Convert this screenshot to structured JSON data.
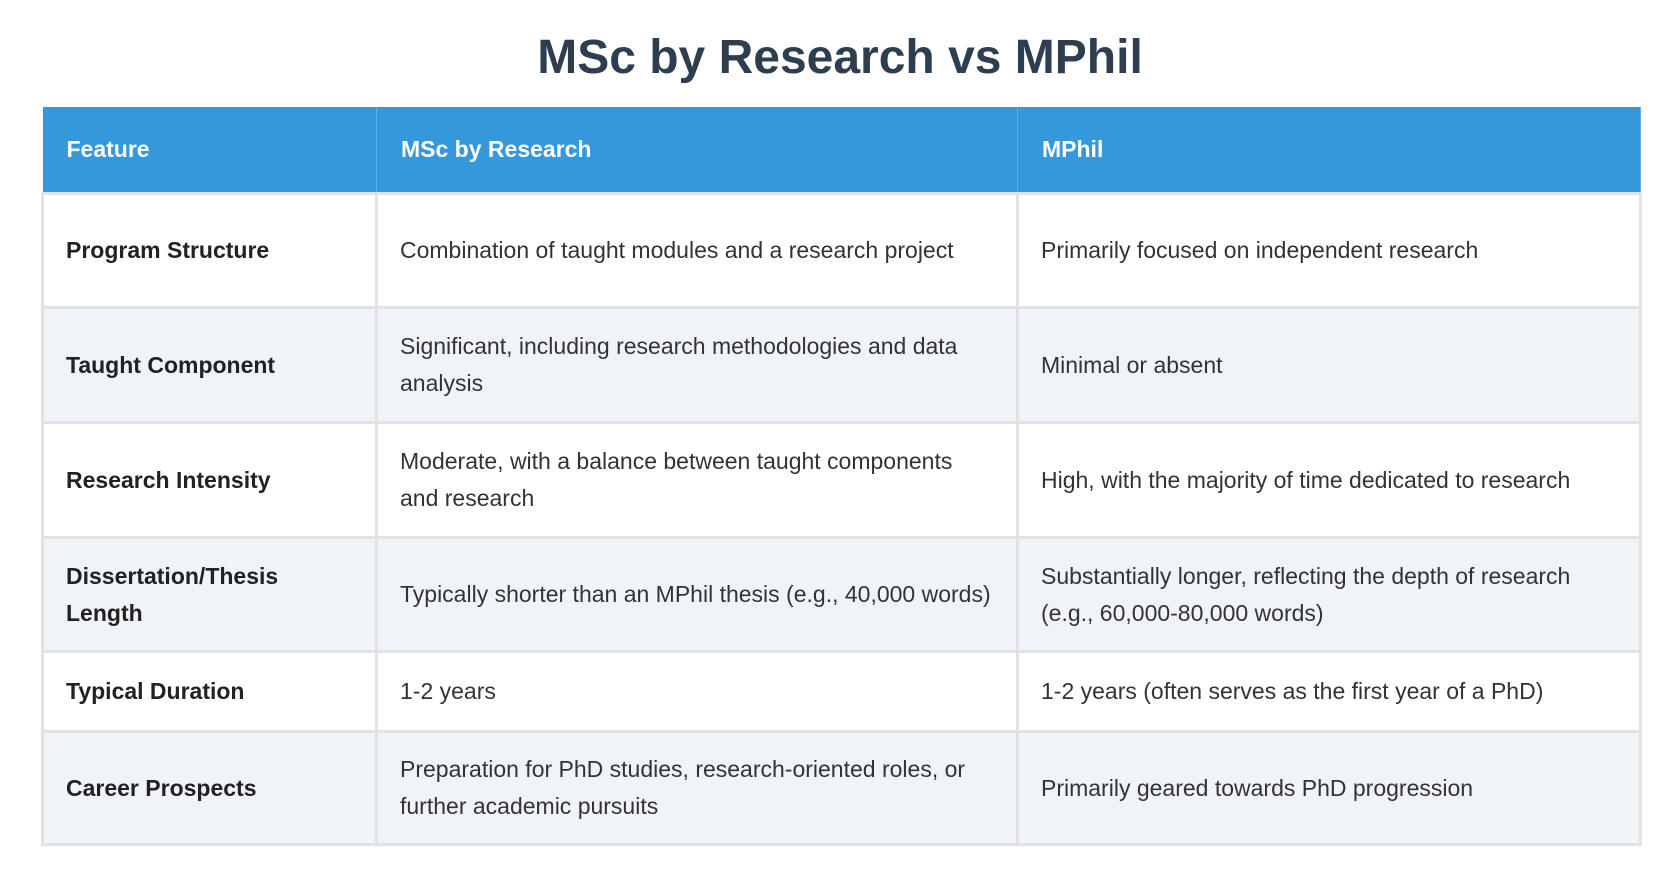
{
  "title": "MSc by Research vs MPhil",
  "colors": {
    "header_bg": "#3498db",
    "title": "#2c3e50",
    "alt_row": "#f0f4f9"
  },
  "table": {
    "headers": [
      "Feature",
      "MSc by Research",
      "MPhil"
    ],
    "rows": [
      {
        "feature": "Program Structure",
        "msc": "Combination of taught modules and a research project",
        "mphil": "Primarily focused on independent research"
      },
      {
        "feature": "Taught Component",
        "msc": "Significant, including research methodologies and data analysis",
        "mphil": "Minimal or absent"
      },
      {
        "feature": "Research Intensity",
        "msc": "Moderate, with a balance between taught components and research",
        "mphil": "High, with the majority of time dedicated to research"
      },
      {
        "feature": "Dissertation/Thesis Length",
        "msc": "Typically shorter than an MPhil thesis (e.g., 40,000 words)",
        "mphil": "Substantially longer, reflecting the depth of research (e.g., 60,000-80,000 words)"
      },
      {
        "feature": "Typical Duration",
        "msc": "1-2 years",
        "mphil": "1-2 years (often serves as the first year of a PhD)"
      },
      {
        "feature": "Career Prospects",
        "msc": "Preparation for PhD studies, research-oriented roles, or further academic pursuits",
        "mphil": "Primarily geared towards PhD progression"
      }
    ]
  }
}
